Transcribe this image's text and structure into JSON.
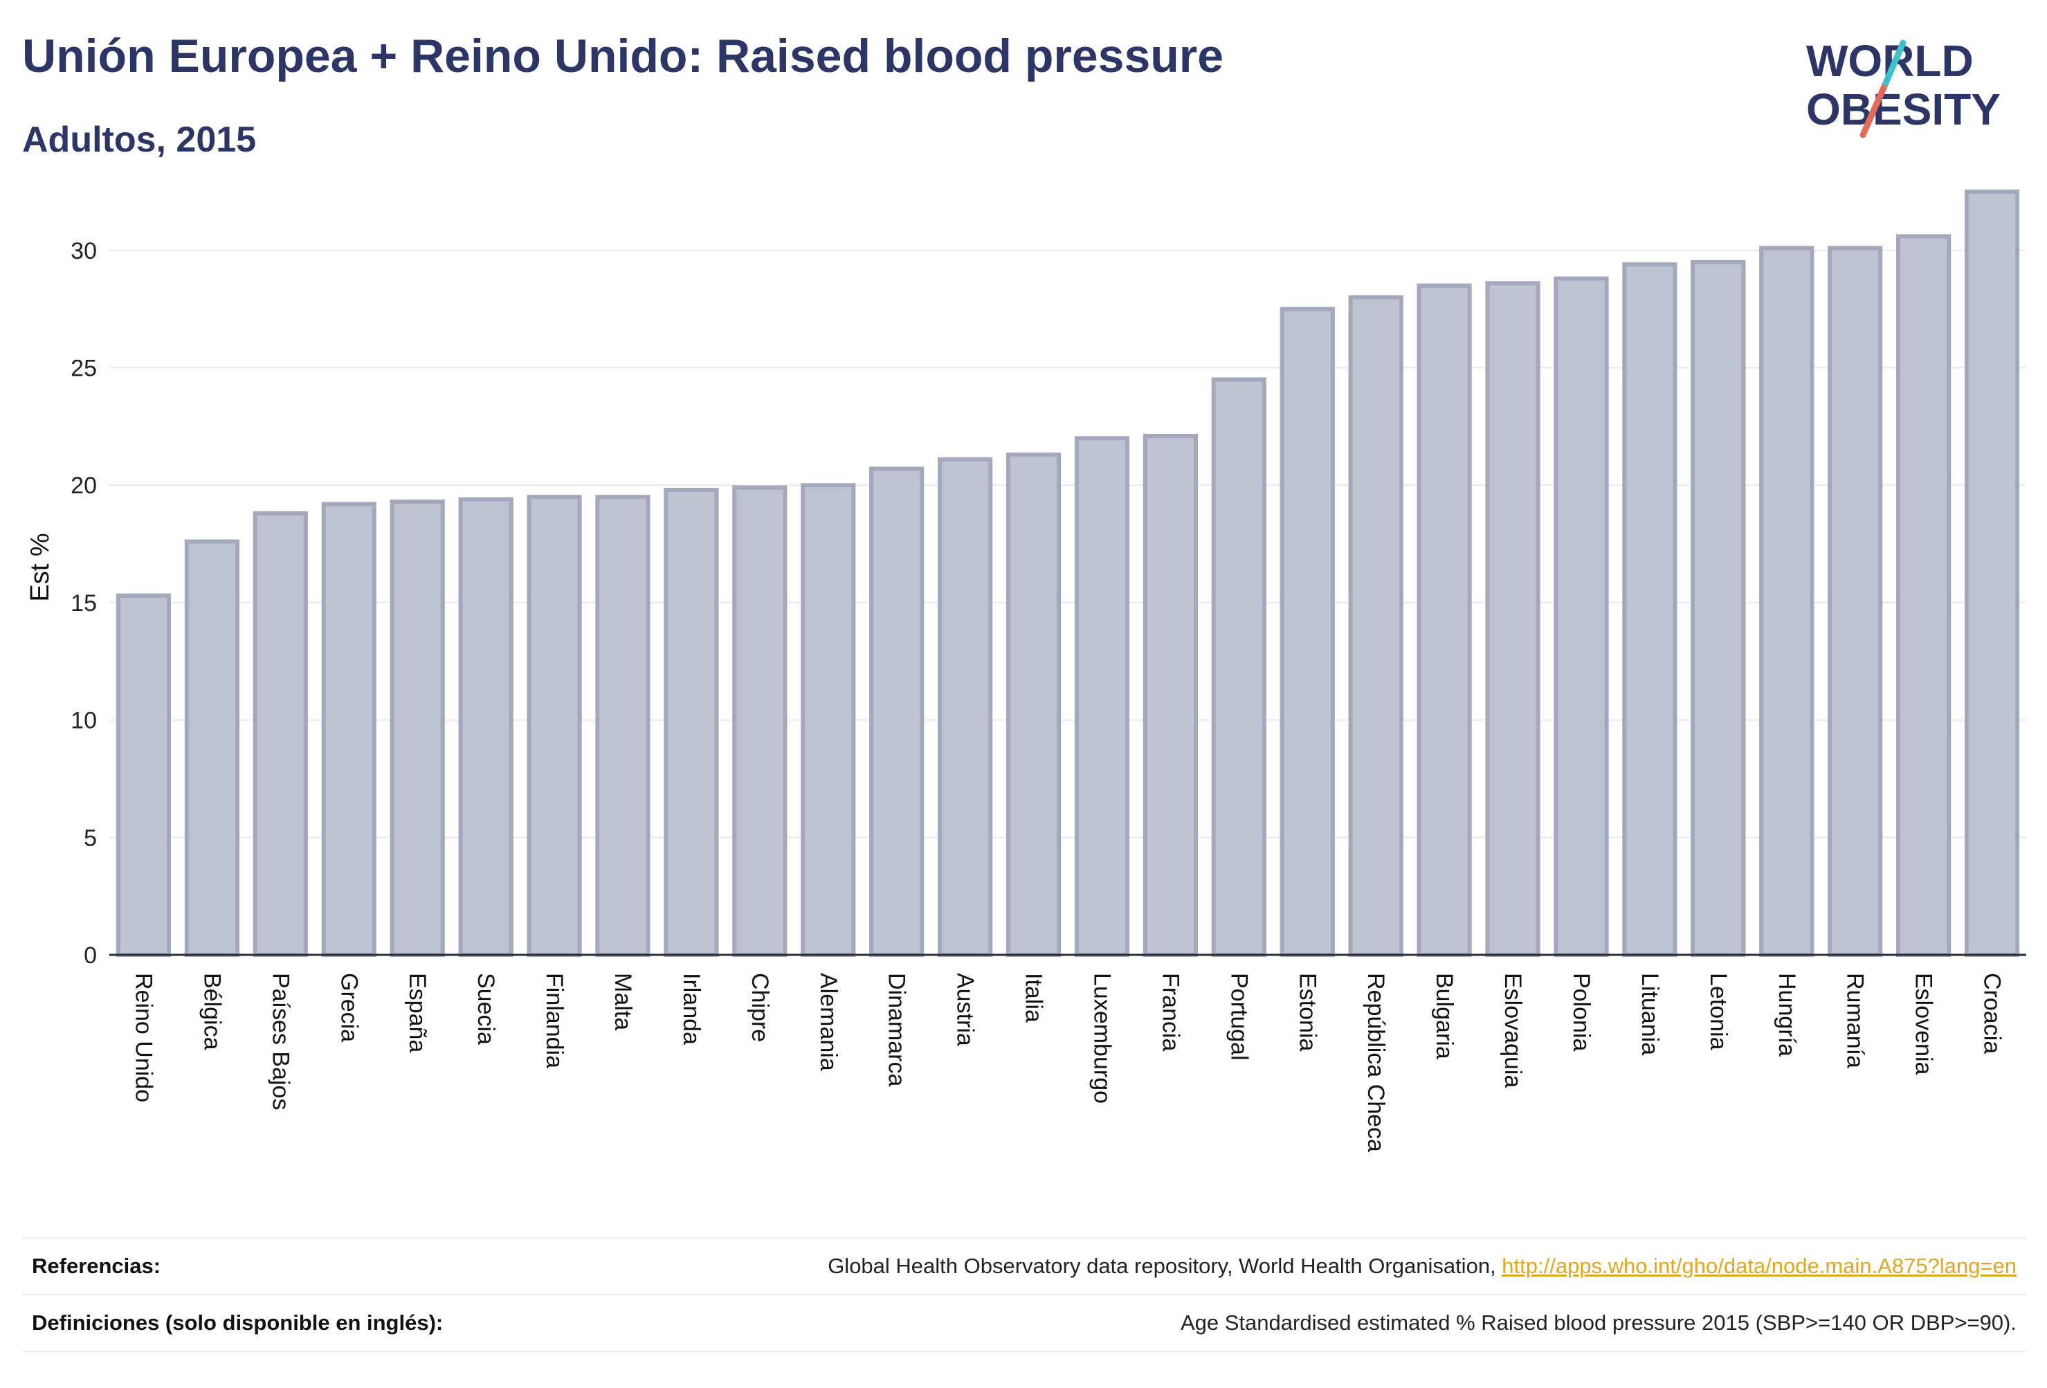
{
  "header": {
    "title": "Unión Europea + Reino Unido: Raised blood pressure",
    "subtitle": "Adultos, 2015"
  },
  "logo": {
    "line1": "WORLD",
    "line2": "OBESITY",
    "colors": {
      "text": "#2b3566",
      "slash_top": "#3ec1c9",
      "slash_bottom": "#e36b5b"
    }
  },
  "chart_data": {
    "type": "bar",
    "ylabel": "Est %",
    "xlabel": "",
    "ylim": [
      0,
      33
    ],
    "yticks": [
      0,
      5,
      10,
      15,
      20,
      25,
      30
    ],
    "grid": true,
    "bar_fill": "#bfc3d1",
    "bar_stroke": "#a3a8bd",
    "categories": [
      "Reino Unido",
      "Bélgica",
      "Países Bajos",
      "Grecia",
      "España",
      "Suecia",
      "Finlandia",
      "Malta",
      "Irlanda",
      "Chipre",
      "Alemania",
      "Dinamarca",
      "Austria",
      "Italia",
      "Luxemburgo",
      "Francia",
      "Portugal",
      "Estonia",
      "República Checa",
      "Bulgaria",
      "Eslovaquia",
      "Polonia",
      "Lituania",
      "Letonia",
      "Hungría",
      "Rumanía",
      "Eslovenia",
      "Croacia"
    ],
    "values": [
      15.3,
      17.6,
      18.8,
      19.2,
      19.3,
      19.4,
      19.5,
      19.5,
      19.8,
      19.9,
      20.0,
      20.7,
      21.1,
      21.3,
      22.0,
      22.1,
      24.5,
      27.5,
      28.0,
      28.5,
      28.6,
      28.8,
      29.4,
      29.5,
      30.1,
      30.1,
      30.6,
      32.5
    ]
  },
  "footer": {
    "references_label": "Referencias:",
    "references_text": "Global Health Observatory data repository, World Health Organisation, ",
    "references_link": "http://apps.who.int/gho/data/node.main.A875?lang=en",
    "definitions_label": "Definiciones (solo disponible en inglés):",
    "definitions_text": "Age Standardised estimated % Raised blood pressure 2015 (SBP>=140 OR DBP>=90)."
  }
}
